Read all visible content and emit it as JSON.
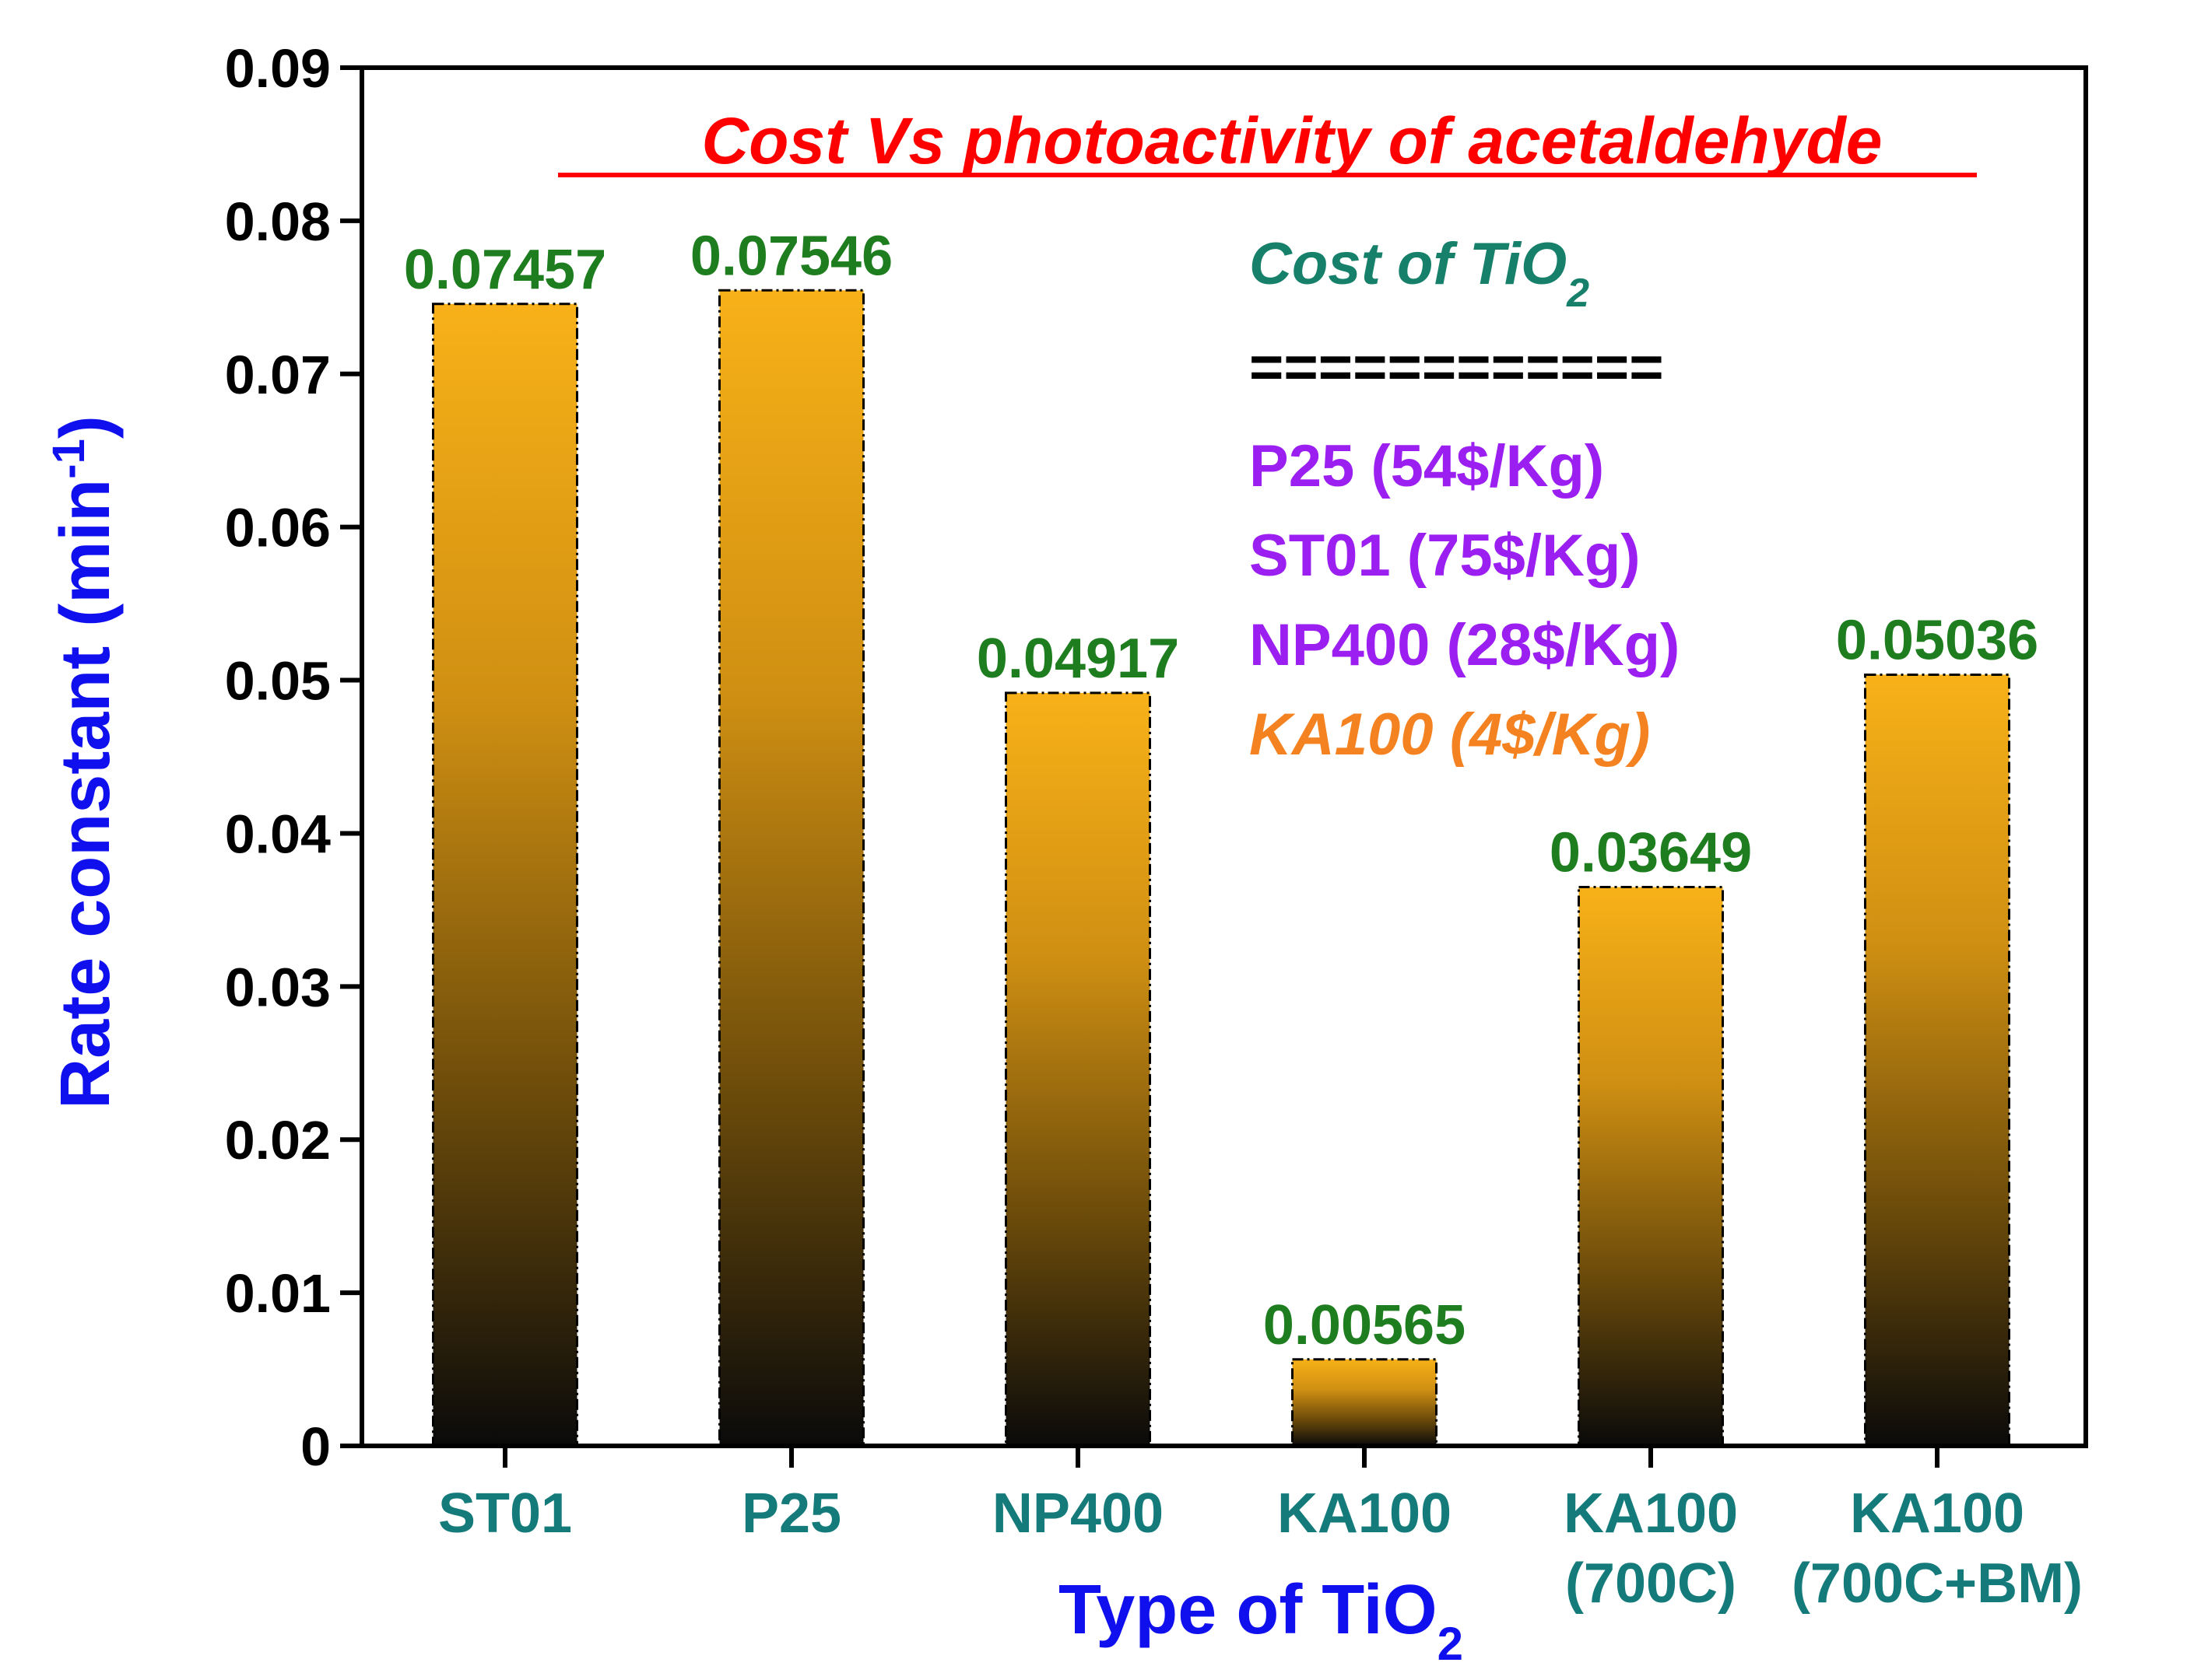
{
  "chart_data": {
    "type": "bar",
    "title": "Cost Vs photoactivity of acetaldehyde",
    "ylabel": "Rate constant (min",
    "ylabel_sup": "-1",
    "ylabel_close": ")",
    "xlabel": "Type of TiO",
    "xlabel_sub": "2",
    "ylim": [
      0,
      0.09
    ],
    "yticks": [
      "0",
      "0.01",
      "0.02",
      "0.03",
      "0.04",
      "0.05",
      "0.06",
      "0.07",
      "0.08",
      "0.09"
    ],
    "categories": [
      [
        "ST01"
      ],
      [
        "P25"
      ],
      [
        "NP400"
      ],
      [
        "KA100"
      ],
      [
        "KA100",
        "(700C)"
      ],
      [
        "KA100",
        "(700C+BM)"
      ]
    ],
    "values": [
      0.07457,
      0.07546,
      0.04917,
      0.00565,
      0.03649,
      0.05036
    ],
    "value_labels": [
      "0.07457",
      "0.07546",
      "0.04917",
      "0.00565",
      "0.03649",
      "0.05036"
    ],
    "annotation": {
      "heading": "Cost of TiO",
      "heading_sub": "2",
      "separator": "============",
      "lines": [
        {
          "text": "P25 (54$/Kg)",
          "color": "#9b1ff0",
          "italic": false
        },
        {
          "text": "ST01 (75$/Kg)",
          "color": "#9b1ff0",
          "italic": false
        },
        {
          "text": "NP400 (28$/Kg)",
          "color": "#9b1ff0",
          "italic": false
        },
        {
          "text": "KA100 (4$/Kg)",
          "color": "#f58220",
          "italic": true
        }
      ]
    }
  },
  "colors": {
    "title": "#ff0000",
    "axis_label": "#1010ee",
    "category": "#147a7a",
    "value_label": "#1e7d1e",
    "heading": "#16806a",
    "bar_top": "#f8b118",
    "bar_bottom": "#0a0a0a"
  }
}
